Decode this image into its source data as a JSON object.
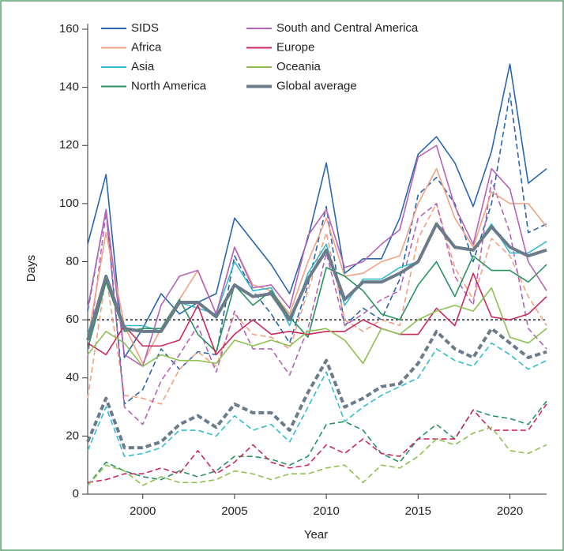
{
  "chart_data": {
    "type": "line",
    "xlabel": "Year",
    "ylabel": "Days",
    "x": [
      1997,
      1998,
      1999,
      2000,
      2001,
      2002,
      2003,
      2004,
      2005,
      2006,
      2007,
      2008,
      2009,
      2010,
      2011,
      2012,
      2013,
      2014,
      2015,
      2016,
      2017,
      2018,
      2019,
      2020,
      2021,
      2022
    ],
    "xlim": [
      1997,
      2022
    ],
    "xticks": [
      2000,
      2005,
      2010,
      2015,
      2020
    ],
    "ylim": [
      0,
      160
    ],
    "yticks": [
      0,
      20,
      40,
      60,
      80,
      100,
      120,
      140,
      160
    ],
    "reference_line": 60,
    "series": [
      {
        "name": "SIDS",
        "color": "#2a66ad",
        "values": [
          86,
          110,
          47,
          57,
          69,
          62,
          66,
          69,
          95,
          87,
          79,
          69,
          88,
          114,
          76,
          81,
          81,
          95,
          117,
          123,
          114,
          99,
          118,
          148,
          107,
          112
        ]
      },
      {
        "name": "Africa",
        "color": "#f2a284",
        "values": [
          53,
          90,
          58,
          45,
          57,
          67,
          77,
          62,
          85,
          72,
          70,
          62,
          80,
          95,
          75,
          76,
          80,
          82,
          100,
          112,
          95,
          85,
          104,
          100,
          100,
          92
        ]
      },
      {
        "name": "Asia",
        "color": "#34bccb",
        "values": [
          55,
          75,
          58,
          58,
          56,
          66,
          64,
          62,
          80,
          70,
          71,
          58,
          76,
          86,
          65,
          74,
          74,
          78,
          80,
          93,
          85,
          84,
          93,
          83,
          83,
          87
        ]
      },
      {
        "name": "North America",
        "color": "#2b9262",
        "values": [
          50,
          73,
          56,
          57,
          57,
          67,
          55,
          49,
          72,
          65,
          70,
          61,
          54,
          78,
          75,
          70,
          62,
          60,
          72,
          80,
          68,
          82,
          77,
          77,
          73,
          79
        ]
      },
      {
        "name": "South and Central America",
        "color": "#b464b9",
        "values": [
          64,
          98,
          48,
          44,
          65,
          75,
          77,
          62,
          85,
          71,
          72,
          64,
          89,
          98,
          78,
          80,
          86,
          91,
          116,
          120,
          99,
          86,
          112,
          105,
          80,
          70
        ]
      },
      {
        "name": "Europe",
        "color": "#c92a5b",
        "values": [
          52,
          48,
          58,
          51,
          51,
          53,
          65,
          48,
          55,
          60,
          55,
          56,
          55,
          56,
          56,
          60,
          57,
          55,
          55,
          64,
          58,
          76,
          61,
          60,
          62,
          68
        ]
      },
      {
        "name": "Oceania",
        "color": "#8dc152",
        "values": [
          48,
          56,
          52,
          44,
          48,
          46,
          46,
          45,
          53,
          51,
          53,
          51,
          56,
          57,
          53,
          45,
          57,
          55,
          60,
          63,
          65,
          63,
          71,
          54,
          52,
          57
        ]
      },
      {
        "name": "Global average",
        "color": "#6b7b89",
        "width": 4,
        "values": [
          53,
          75,
          57,
          56,
          56,
          66,
          66,
          61,
          72,
          68,
          69,
          60,
          74,
          84,
          67,
          73,
          73,
          76,
          80,
          93,
          85,
          84,
          92,
          85,
          82,
          84
        ]
      },
      {
        "color": "#2a66ad",
        "dash": true,
        "values": [
          63,
          98,
          31,
          36,
          50,
          43,
          49,
          48,
          82,
          70,
          62,
          52,
          72,
          99,
          58,
          64,
          60,
          74,
          103,
          109,
          100,
          80,
          100,
          138,
          90,
          93
        ]
      },
      {
        "color": "#f2a284",
        "dash": true,
        "values": [
          33,
          75,
          34,
          33,
          31,
          43,
          49,
          44,
          62,
          55,
          54,
          50,
          70,
          90,
          60,
          56,
          60,
          58,
          88,
          100,
          78,
          67,
          88,
          82,
          68,
          58
        ]
      },
      {
        "color": "#34bccb",
        "dash": true,
        "values": [
          15,
          30,
          13,
          14,
          16,
          22,
          22,
          20,
          27,
          22,
          24,
          18,
          30,
          42,
          25,
          30,
          34,
          37,
          40,
          50,
          46,
          44,
          52,
          48,
          43,
          46
        ]
      },
      {
        "color": "#2b9262",
        "dash": true,
        "values": [
          3,
          11,
          8,
          6,
          5,
          8,
          6,
          8,
          13,
          13,
          12,
          10,
          13,
          24,
          25,
          22,
          14,
          11,
          19,
          24,
          19,
          29,
          27,
          26,
          24,
          32
        ]
      },
      {
        "color": "#b464b9",
        "dash": true,
        "values": [
          47,
          97,
          30,
          24,
          39,
          48,
          58,
          42,
          63,
          50,
          50,
          41,
          57,
          83,
          58,
          62,
          67,
          70,
          95,
          100,
          75,
          65,
          108,
          90,
          57,
          50
        ]
      },
      {
        "color": "#c92a5b",
        "dash": true,
        "values": [
          4,
          5,
          7,
          7,
          9,
          7,
          15,
          7,
          11,
          17,
          11,
          9,
          10,
          17,
          14,
          19,
          14,
          13,
          19,
          19,
          19,
          29,
          22,
          22,
          22,
          31
        ]
      },
      {
        "color": "#8dc152",
        "dash": true,
        "values": [
          3,
          10,
          8,
          3,
          6,
          4,
          4,
          5,
          8,
          7,
          5,
          7,
          7,
          9,
          10,
          4,
          10,
          9,
          13,
          19,
          17,
          21,
          23,
          15,
          14,
          17
        ]
      },
      {
        "color": "#6b7b89",
        "dash": true,
        "width": 4,
        "values": [
          18,
          33,
          16,
          16,
          18,
          24,
          27,
          23,
          31,
          28,
          28,
          22,
          35,
          46,
          30,
          33,
          37,
          38,
          45,
          56,
          50,
          47,
          57,
          52,
          47,
          49
        ]
      }
    ]
  }
}
